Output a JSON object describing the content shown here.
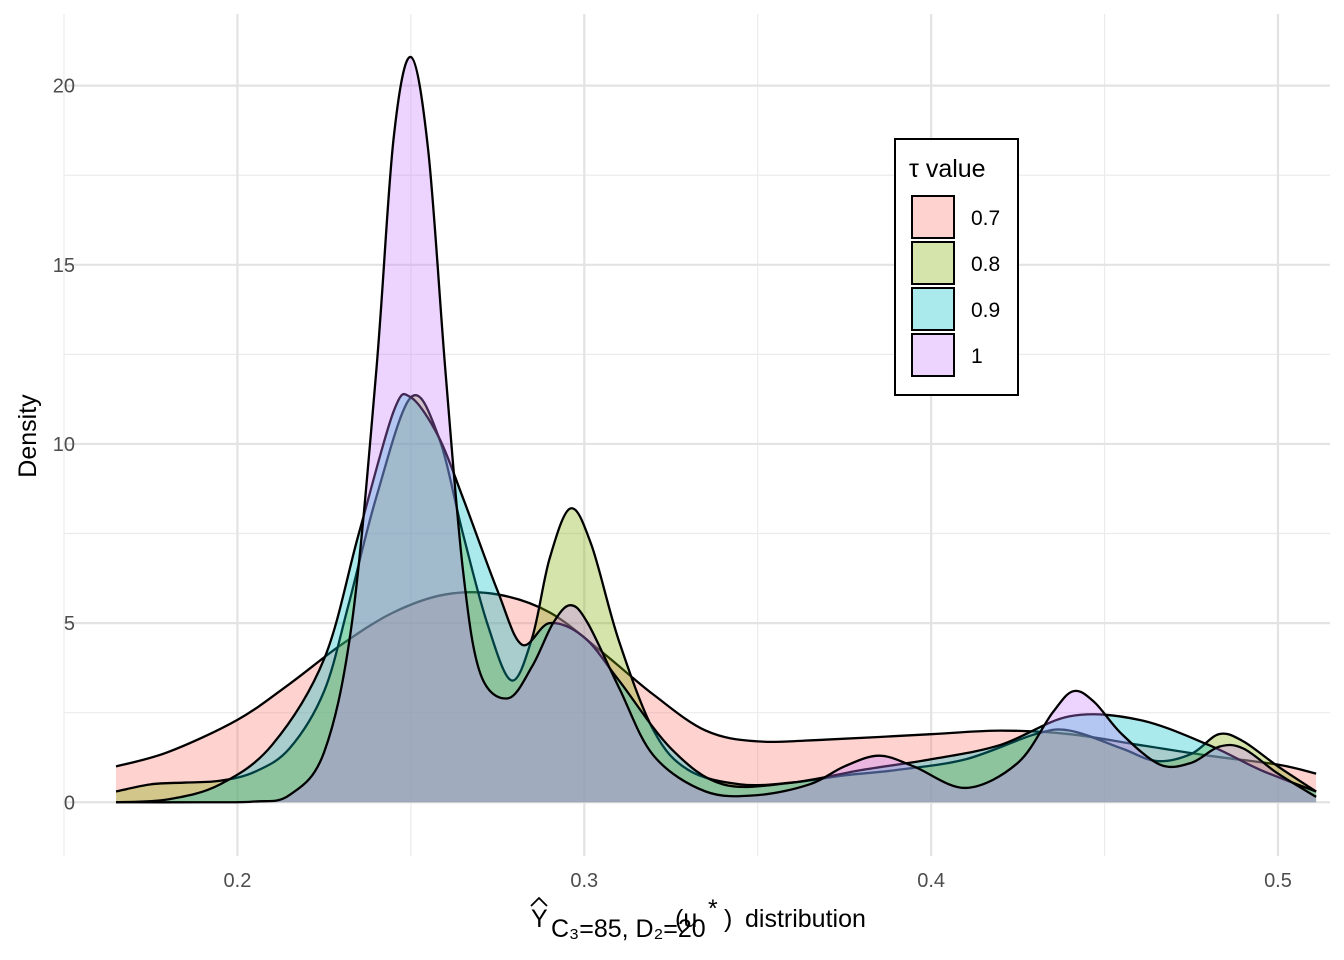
{
  "chart_data": {
    "type": "area",
    "ylabel": "Density",
    "xlabel": {
      "hat_symbol": "Y",
      "subscript": "C₃=85, D₂=20",
      "argument": "(u",
      "star": "*",
      "close": ")",
      "suffix": "distribution"
    },
    "xlim": [
      0.15,
      0.515
    ],
    "ylim": [
      -1.5,
      22
    ],
    "grid": true,
    "x_ticks": [
      0.2,
      0.3,
      0.4,
      0.5
    ],
    "x_tick_labels": [
      "0.2",
      "0.3",
      "0.4",
      "0.5"
    ],
    "y_ticks": [
      0,
      5,
      10,
      15,
      20
    ],
    "y_tick_labels": [
      "0",
      "5",
      "10",
      "15",
      "20"
    ],
    "legend": {
      "title": "τ value",
      "position": "top-right"
    },
    "series": [
      {
        "name": "0.7",
        "color": "#F8766D",
        "x": [
          0.165,
          0.18,
          0.2,
          0.215,
          0.23,
          0.245,
          0.26,
          0.275,
          0.29,
          0.305,
          0.32,
          0.335,
          0.35,
          0.37,
          0.4,
          0.42,
          0.44,
          0.46,
          0.48,
          0.5,
          0.511
        ],
        "y": [
          1.0,
          1.4,
          2.3,
          3.3,
          4.4,
          5.3,
          5.8,
          5.8,
          5.3,
          4.2,
          3.0,
          2.0,
          1.7,
          1.75,
          1.9,
          2.0,
          1.9,
          1.6,
          1.3,
          1.05,
          0.8
        ]
      },
      {
        "name": "0.8",
        "color": "#7CAE00",
        "x": [
          0.165,
          0.175,
          0.185,
          0.195,
          0.205,
          0.215,
          0.225,
          0.232,
          0.24,
          0.25,
          0.258,
          0.265,
          0.272,
          0.279,
          0.285,
          0.29,
          0.296,
          0.302,
          0.31,
          0.32,
          0.33,
          0.345,
          0.36,
          0.375,
          0.39,
          0.41,
          0.43,
          0.44,
          0.455,
          0.465,
          0.475,
          0.483,
          0.49,
          0.5,
          0.511
        ],
        "y": [
          0.3,
          0.5,
          0.55,
          0.6,
          0.85,
          1.5,
          3.1,
          5.5,
          8.5,
          11.3,
          10.2,
          7.5,
          5.0,
          3.4,
          4.6,
          6.8,
          8.2,
          7.2,
          4.5,
          2.0,
          0.9,
          0.5,
          0.55,
          0.75,
          0.9,
          1.2,
          1.9,
          2.0,
          1.5,
          1.15,
          1.35,
          1.9,
          1.7,
          1.0,
          0.3
        ]
      },
      {
        "name": "0.9",
        "color": "#00BFC4",
        "x": [
          0.165,
          0.18,
          0.195,
          0.21,
          0.225,
          0.235,
          0.245,
          0.25,
          0.258,
          0.265,
          0.275,
          0.282,
          0.29,
          0.3,
          0.31,
          0.325,
          0.34,
          0.36,
          0.38,
          0.4,
          0.42,
          0.44,
          0.46,
          0.48,
          0.495,
          0.511
        ],
        "y": [
          0.0,
          0.08,
          0.5,
          1.6,
          4.0,
          7.5,
          10.9,
          11.3,
          10.2,
          8.5,
          5.9,
          4.4,
          5.0,
          4.6,
          3.4,
          1.5,
          0.5,
          0.55,
          0.9,
          1.2,
          1.6,
          2.4,
          2.3,
          1.6,
          0.9,
          0.3
        ]
      },
      {
        "name": "1",
        "color": "#C77CFF",
        "x": [
          0.165,
          0.19,
          0.205,
          0.215,
          0.225,
          0.233,
          0.24,
          0.245,
          0.25,
          0.255,
          0.26,
          0.265,
          0.27,
          0.278,
          0.285,
          0.291,
          0.296,
          0.301,
          0.31,
          0.32,
          0.335,
          0.35,
          0.365,
          0.375,
          0.385,
          0.395,
          0.41,
          0.425,
          0.435,
          0.441,
          0.447,
          0.455,
          0.466,
          0.475,
          0.483,
          0.49,
          0.5,
          0.511
        ],
        "y": [
          0.0,
          0.0,
          0.02,
          0.2,
          1.4,
          5.0,
          12.0,
          18.5,
          20.8,
          18.2,
          12.0,
          6.5,
          3.6,
          2.9,
          3.8,
          5.0,
          5.5,
          5.0,
          3.2,
          1.3,
          0.3,
          0.2,
          0.5,
          1.0,
          1.3,
          1.0,
          0.4,
          1.1,
          2.5,
          3.1,
          2.8,
          1.9,
          1.05,
          1.1,
          1.55,
          1.5,
          0.8,
          0.15
        ]
      }
    ]
  }
}
